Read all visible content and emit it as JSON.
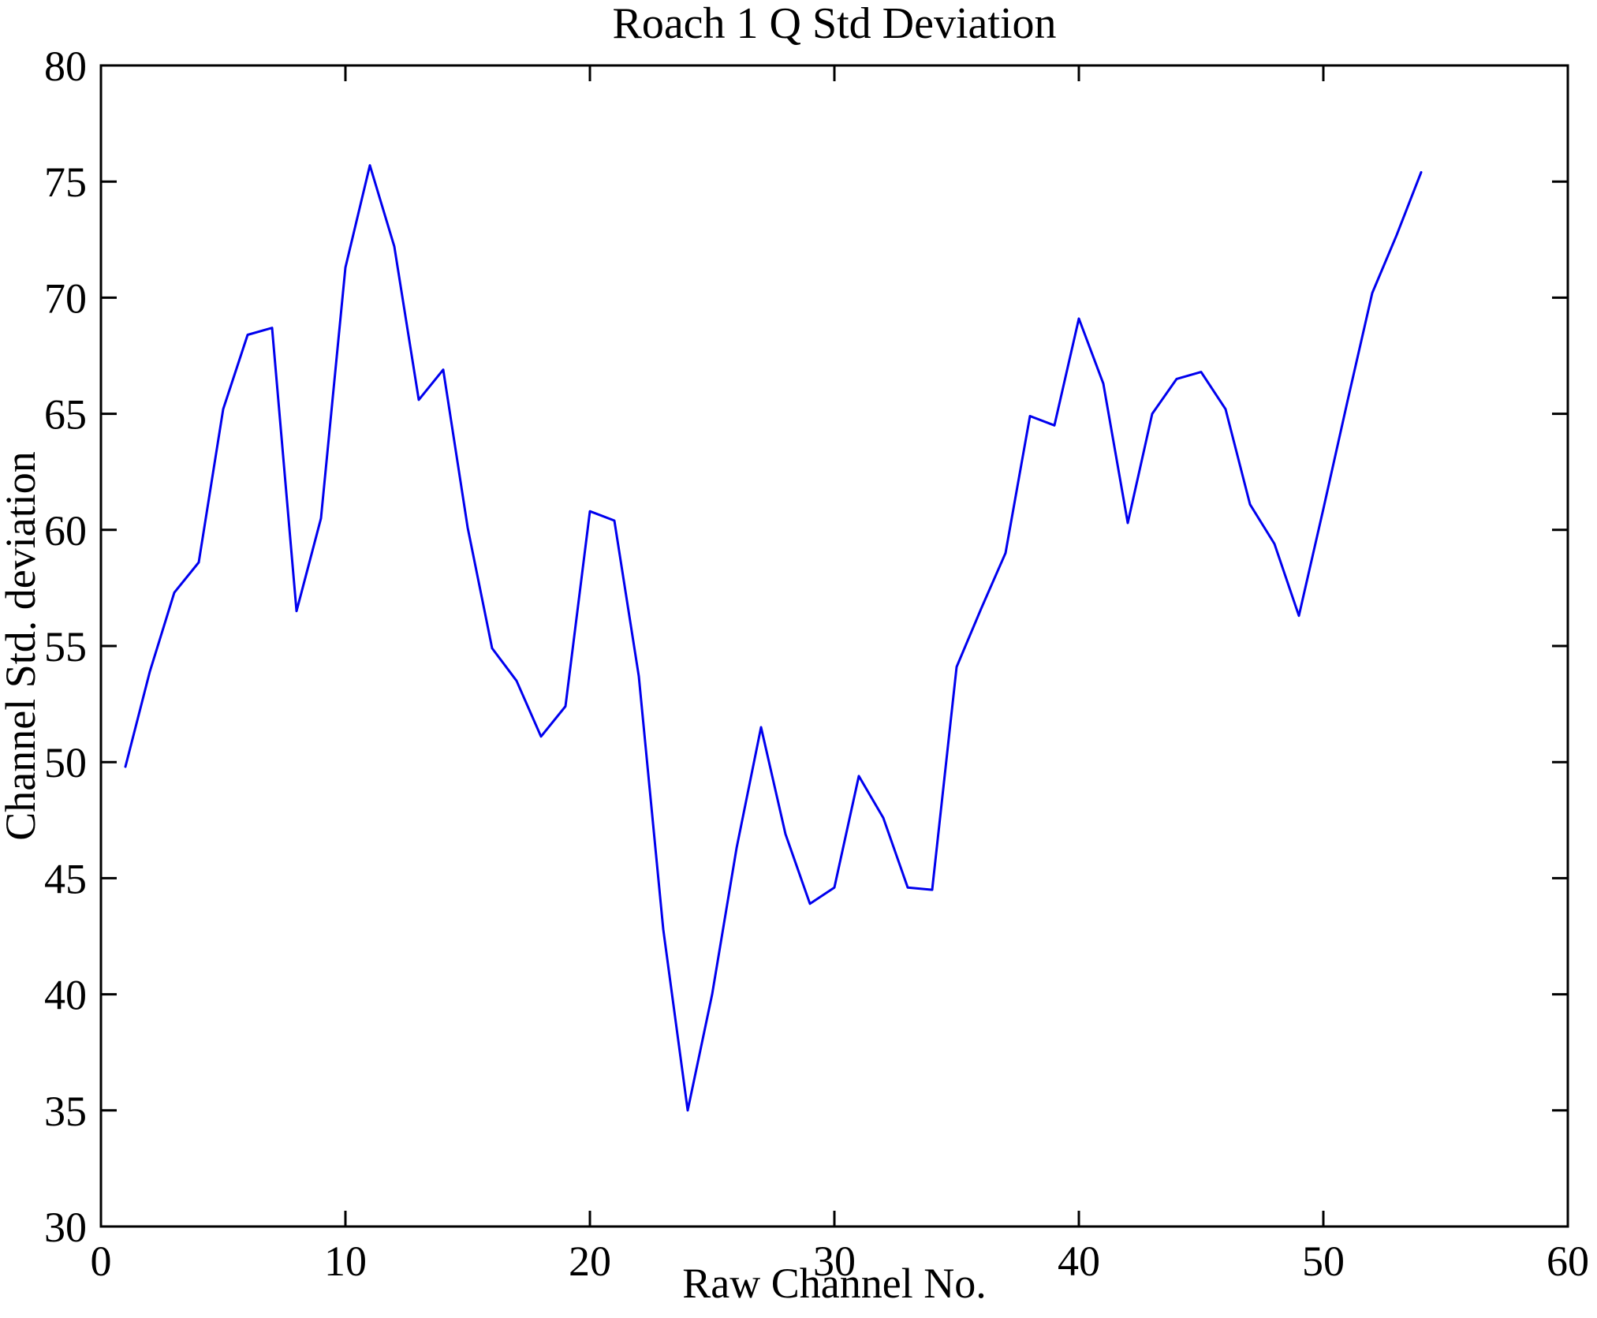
{
  "figure": {
    "background": "#ffffff",
    "axes_color": "#000000",
    "line_color": "#0000ee",
    "line_width": 3
  },
  "chart_data": {
    "type": "line",
    "title": "Roach 1 Q Std Deviation",
    "xlabel": "Raw Channel No.",
    "ylabel": "Channel Std. deviation",
    "xlim": [
      0,
      60
    ],
    "ylim": [
      30,
      80
    ],
    "x_ticks": [
      0,
      10,
      20,
      30,
      40,
      50,
      60
    ],
    "y_ticks": [
      30,
      35,
      40,
      45,
      50,
      55,
      60,
      65,
      70,
      75,
      80
    ],
    "grid": false,
    "legend": "none",
    "x": [
      1,
      2,
      3,
      4,
      5,
      6,
      7,
      8,
      9,
      10,
      11,
      12,
      13,
      14,
      15,
      16,
      17,
      18,
      19,
      20,
      21,
      22,
      23,
      24,
      25,
      26,
      27,
      28,
      29,
      30,
      31,
      32,
      33,
      34,
      35,
      36,
      37,
      38,
      39,
      40,
      41,
      42,
      43,
      44,
      45,
      46,
      47,
      48,
      49,
      50,
      51,
      52,
      53,
      54
    ],
    "values": [
      49.8,
      53.9,
      57.3,
      58.6,
      65.2,
      68.4,
      68.7,
      56.5,
      60.5,
      71.3,
      75.7,
      72.2,
      65.6,
      66.9,
      60.1,
      54.9,
      53.5,
      51.1,
      52.4,
      60.8,
      60.4,
      53.7,
      42.8,
      35.0,
      40.0,
      46.3,
      51.5,
      46.9,
      43.9,
      44.6,
      49.4,
      47.6,
      44.6,
      44.5,
      54.1,
      56.6,
      59.0,
      64.9,
      64.5,
      69.1,
      66.3,
      60.3,
      65.0,
      66.5,
      66.8,
      65.2,
      61.1,
      59.4,
      56.3,
      60.9,
      65.6,
      70.2,
      72.7,
      75.4
    ]
  }
}
